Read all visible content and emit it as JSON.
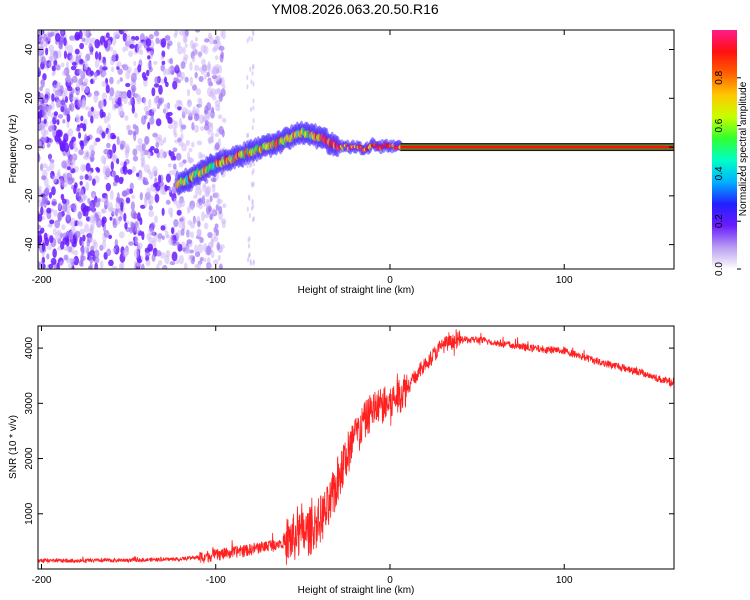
{
  "title": "YM08.2026.063.20.50.R16",
  "chart_data": [
    {
      "type": "heatmap",
      "xlabel": "Height of straight line (km)",
      "ylabel": "Frequency (Hz)",
      "xlim": [
        -202,
        163
      ],
      "ylim": [
        -50,
        48
      ],
      "xticks": [
        -200,
        -100,
        0,
        100
      ],
      "yticks": [
        -40,
        -20,
        0,
        20,
        40
      ],
      "colorbar": {
        "label": "Normalized spectral amplitude",
        "range": [
          0,
          1
        ],
        "ticks": [
          0.0,
          0.2,
          0.4,
          0.6,
          0.8
        ],
        "tick_labels": [
          "0.0",
          "0.2",
          "0.4",
          "0.6",
          "0.8"
        ],
        "colors": [
          "#ffffff",
          "#b89cf0",
          "#6a1bff",
          "#2020ff",
          "#00b0ff",
          "#00ffc8",
          "#30ff30",
          "#c8ff00",
          "#ffc800",
          "#ff6000",
          "#ff1010",
          "#ff1a8c"
        ]
      },
      "noise_region_x": [
        -202,
        -110
      ],
      "signal_ridge": {
        "x": [
          -122,
          -115,
          -108,
          -100,
          -92,
          -84,
          -76,
          -68,
          -60,
          -54,
          -50,
          -46,
          -40,
          -35,
          -30,
          -24,
          -18,
          -14,
          -10,
          -6,
          -2,
          2,
          6
        ],
        "y": [
          -15,
          -13,
          -10,
          -7,
          -5,
          -3,
          -1,
          1,
          3,
          5,
          6,
          5,
          4,
          2,
          0,
          0,
          0,
          -1,
          1,
          0,
          1,
          0,
          0
        ]
      },
      "carrier": {
        "x": [
          6,
          163
        ],
        "frequency": 0,
        "amplitude": 1.0
      }
    },
    {
      "type": "line",
      "xlabel": "Height of straight line (km)",
      "ylabel": "SNR (10 * v/v)",
      "xlim": [
        -202,
        163
      ],
      "ylim": [
        0,
        4400
      ],
      "xticks": [
        -200,
        -100,
        0,
        100
      ],
      "yticks": [
        1000,
        2000,
        3000,
        4000
      ],
      "color": "#ff2020",
      "envelope": {
        "x": [
          -202,
          -180,
          -150,
          -120,
          -100,
          -80,
          -60,
          -45,
          -35,
          -28,
          -20,
          -10,
          0,
          10,
          20,
          30,
          40,
          50,
          60,
          80,
          100,
          120,
          140,
          163
        ],
        "y": [
          150,
          150,
          160,
          180,
          250,
          350,
          500,
          700,
          1100,
          1800,
          2400,
          2900,
          3000,
          3300,
          3700,
          4050,
          4150,
          4150,
          4100,
          4000,
          3950,
          3750,
          3600,
          3350
        ]
      }
    }
  ]
}
